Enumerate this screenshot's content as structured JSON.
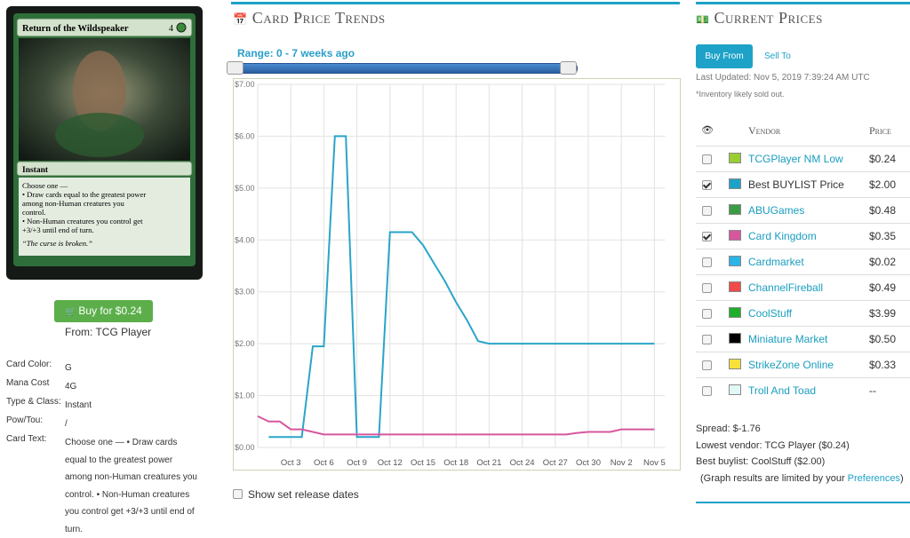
{
  "card": {
    "name": "Return of the Wildspeaker",
    "mana": "4",
    "type_line": "Instant",
    "rules": [
      "Choose one —",
      "• Draw cards equal to the greatest power",
      "among non-Human creatures you",
      "control.",
      "• Non-Human creatures you control get",
      "+3/+3 until end of turn."
    ],
    "flavor": "“The curse is broken.”"
  },
  "buy": {
    "button": "Buy for $0.24",
    "source": "From: TCG Player"
  },
  "properties": [
    {
      "label": "Card Color:",
      "value": "G"
    },
    {
      "label": "Mana Cost",
      "value": "4G"
    },
    {
      "label": "Type & Class:",
      "value": "Instant"
    },
    {
      "label": "Pow/Tou:",
      "value": "/"
    },
    {
      "label": "Card Text:",
      "value": "Choose one — • Draw cards equal to the greatest power among non-Human creatures you control. • Non-Human creatures you control get +3/+3 until end of turn."
    }
  ],
  "trends": {
    "title": "Card Price Trends",
    "range": "Range: 0 - 7 weeks ago",
    "release_toggle": "Show set release dates"
  },
  "chart_data": {
    "type": "line",
    "categories": [
      null,
      null,
      null,
      "Oct 3",
      null,
      null,
      "Oct 6",
      null,
      null,
      "Oct 9",
      null,
      null,
      "Oct 12",
      null,
      null,
      "Oct 15",
      null,
      null,
      "Oct 18",
      null,
      null,
      "Oct 21",
      null,
      null,
      "Oct 24",
      null,
      null,
      "Oct 27",
      null,
      null,
      "Oct 30",
      null,
      null,
      "Nov 2",
      null,
      null,
      "Nov 5"
    ],
    "series": [
      {
        "color": "#2aa5c9",
        "values": [
          null,
          0.2,
          0.2,
          0.2,
          0.2,
          1.95,
          1.95,
          6,
          6,
          0.2,
          0.2,
          0.2,
          4.15,
          4.15,
          4.15,
          3.9,
          3.55,
          3.2,
          2.8,
          2.45,
          2.05,
          2,
          2,
          2,
          2,
          2,
          2,
          2,
          2,
          2,
          2,
          2,
          2,
          2,
          2,
          2,
          2
        ]
      },
      {
        "color": "#d6579d",
        "values": [
          0.6,
          0.5,
          0.5,
          0.35,
          0.35,
          0.3,
          0.25,
          0.25,
          0.25,
          0.25,
          0.25,
          0.25,
          0.25,
          0.25,
          0.25,
          0.25,
          0.25,
          0.25,
          0.25,
          0.25,
          0.25,
          0.25,
          0.25,
          0.25,
          0.25,
          0.25,
          0.25,
          0.25,
          0.25,
          0.28,
          0.3,
          0.3,
          0.3,
          0.35,
          0.35,
          0.35,
          0.35
        ]
      }
    ],
    "ylim": [
      0,
      7
    ],
    "yticks": [
      {
        "value": 0,
        "label": "$0.00"
      },
      {
        "value": 1,
        "label": "$1.00"
      },
      {
        "value": 2,
        "label": "$2.00"
      },
      {
        "value": 3,
        "label": "$3.00"
      },
      {
        "value": 4,
        "label": "$4.00"
      },
      {
        "value": 5,
        "label": "$5.00"
      },
      {
        "value": 6,
        "label": "$6.00"
      },
      {
        "value": 7,
        "label": "$7.00"
      }
    ],
    "grid": true
  },
  "prices": {
    "title": "Current Prices",
    "tabs": [
      "Buy From",
      "Sell To"
    ],
    "updated": "Last Updated: Nov 5, 2019 7:39:24 AM UTC",
    "note": "*Inventory likely sold out.",
    "columns": [
      "Vendor",
      "Price"
    ],
    "vendors": [
      {
        "name": "TCGPlayer NM Low",
        "color": "#9acd32",
        "price": "$0.24",
        "checked": false,
        "link": true
      },
      {
        "name": "Best BUYLIST Price",
        "color": "#1ea2c8",
        "price": "$2.00",
        "checked": true,
        "link": false
      },
      {
        "name": "ABUGames",
        "color": "#3c9c46",
        "price": "$0.48",
        "checked": false,
        "link": true
      },
      {
        "name": "Card Kingdom",
        "color": "#d6579d",
        "price": "$0.35",
        "checked": true,
        "link": true
      },
      {
        "name": "Cardmarket",
        "color": "#2ab4e8",
        "price": "$0.02",
        "checked": false,
        "link": true
      },
      {
        "name": "ChannelFireball",
        "color": "#f04a4a",
        "price": "$0.49",
        "checked": false,
        "link": true
      },
      {
        "name": "CoolStuff",
        "color": "#1fae2a",
        "price": "$3.99",
        "checked": false,
        "link": true
      },
      {
        "name": "Miniature Market",
        "color": "#000000",
        "price": "$0.50",
        "checked": false,
        "link": true
      },
      {
        "name": "StrikeZone Online",
        "color": "#f7e13a",
        "price": "$0.33",
        "checked": false,
        "link": true
      },
      {
        "name": "Troll And Toad",
        "color": "#e2f8f8",
        "price": "--",
        "checked": false,
        "link": true
      }
    ],
    "summary": [
      "Spread: $-1.76",
      "Lowest vendor: TCG Player ($0.24)",
      "Best buylist: CoolStuff ($2.00)"
    ],
    "limit": {
      "before": "(Graph results are limited by your ",
      "link": "Preferences",
      "after": ")"
    }
  }
}
